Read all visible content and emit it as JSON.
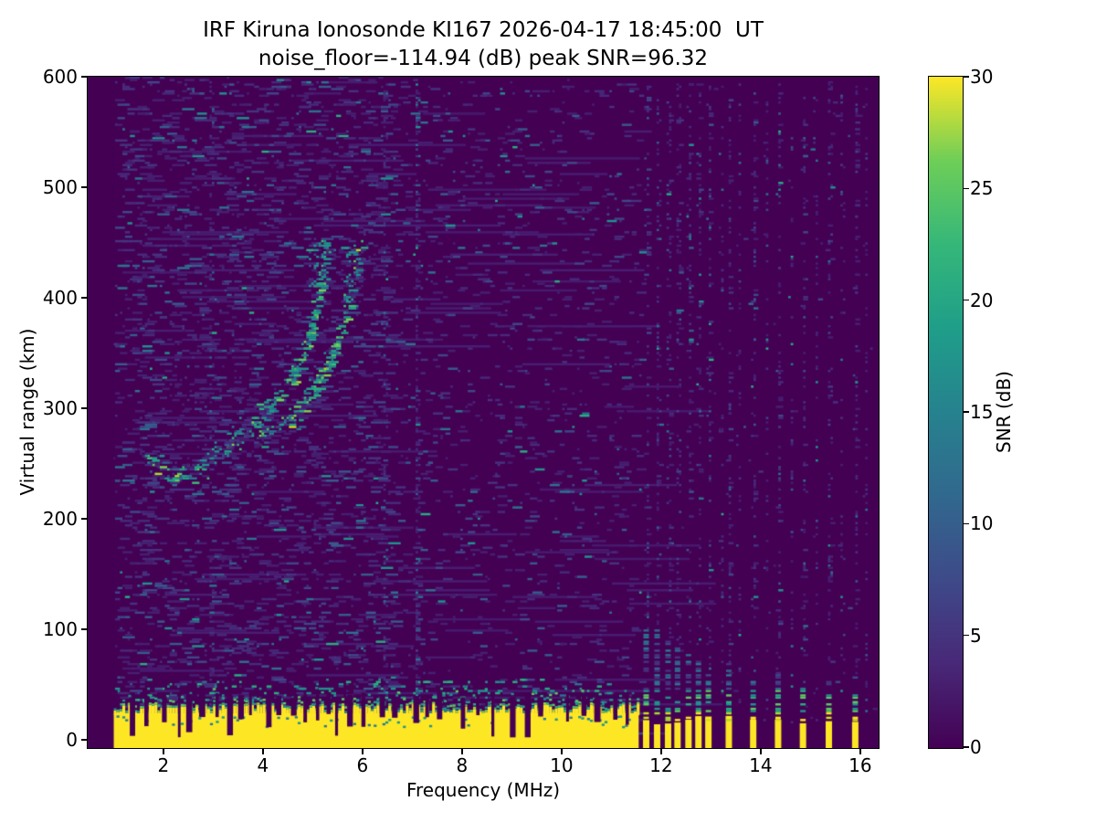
{
  "figure": {
    "title_line1": "IRF Kiruna Ionosonde KI167 2026-04-17 18:45:00  UT",
    "title_line2": "noise_floor=-114.94 (dB) peak SNR=96.32",
    "station": "KI167",
    "timestamp_ut": "2026-04-17 18:45:00",
    "noise_floor_db": -114.94,
    "peak_snr_db": 96.32
  },
  "chart_data": {
    "type": "heatmap",
    "title": "IRF Kiruna Ionosonde KI167 2026-04-17 18:45:00  UT\nnoise_floor=-114.94 (dB) peak SNR=96.32",
    "xlabel": "Frequency (MHz)",
    "ylabel": "Virtual range (km)",
    "colorbar_label": "SNR (dB)",
    "grid": false,
    "xlim": [
      0.48,
      16.37
    ],
    "ylim": [
      -7.4,
      600
    ],
    "clim": [
      0,
      30
    ],
    "x_ticks": [
      2,
      4,
      6,
      8,
      10,
      12,
      14,
      16
    ],
    "y_ticks": [
      0,
      100,
      200,
      300,
      400,
      500,
      600
    ],
    "colorbar_ticks": [
      0,
      5,
      10,
      15,
      20,
      25,
      30
    ],
    "data_freq_start": 1.0,
    "viridis_stops": [
      [
        0.0,
        "#440154"
      ],
      [
        0.125,
        "#482878"
      ],
      [
        0.25,
        "#3e4a89"
      ],
      [
        0.375,
        "#31688e"
      ],
      [
        0.5,
        "#26828e"
      ],
      [
        0.625,
        "#1f9e89"
      ],
      [
        0.75,
        "#35b779"
      ],
      [
        0.875,
        "#6ece58"
      ],
      [
        1.0,
        "#fde725"
      ]
    ],
    "echo_traces": {
      "o_mode": {
        "points": [
          [
            1.62,
            260
          ],
          [
            1.72,
            252
          ],
          [
            1.85,
            246
          ],
          [
            2.0,
            242
          ],
          [
            2.18,
            240
          ],
          [
            2.38,
            242
          ],
          [
            2.58,
            246
          ],
          [
            2.78,
            251
          ],
          [
            2.98,
            257
          ],
          [
            3.18,
            264
          ],
          [
            3.38,
            272
          ],
          [
            3.58,
            280
          ],
          [
            3.78,
            288
          ],
          [
            3.98,
            296
          ],
          [
            4.18,
            306
          ],
          [
            4.38,
            318
          ],
          [
            4.58,
            331
          ],
          [
            4.76,
            347
          ],
          [
            4.9,
            365
          ],
          [
            5.0,
            383
          ],
          [
            5.08,
            401
          ],
          [
            5.15,
            419
          ],
          [
            5.2,
            436
          ],
          [
            5.24,
            448
          ]
        ],
        "bright_range": [
          3.7,
          5.25
        ],
        "spread_top": {
          "freq_range": [
            4.92,
            5.28
          ],
          "km_range": [
            410,
            452
          ]
        }
      },
      "x_mode": {
        "points": [
          [
            3.85,
            270
          ],
          [
            4.05,
            276
          ],
          [
            4.25,
            283
          ],
          [
            4.45,
            291
          ],
          [
            4.65,
            300
          ],
          [
            4.85,
            310
          ],
          [
            5.05,
            322
          ],
          [
            5.22,
            335
          ],
          [
            5.38,
            350
          ],
          [
            5.52,
            366
          ],
          [
            5.64,
            383
          ],
          [
            5.74,
            400
          ],
          [
            5.82,
            417
          ],
          [
            5.88,
            433
          ],
          [
            5.92,
            446
          ]
        ],
        "bright_range": [
          4.5,
          5.85
        ],
        "spread_top": {
          "freq_range": [
            5.58,
            5.96
          ],
          "km_range": [
            398,
            450
          ]
        }
      }
    },
    "ground_band": {
      "freq_start": 1.0,
      "freq_end": 11.55,
      "solid_top_km": 24,
      "ragged_top_km": 36,
      "speckle_top_km": 50,
      "notch_freqs": [
        1.38,
        1.66,
        2.02,
        2.32,
        2.52,
        2.78,
        3.08,
        3.34,
        3.56,
        3.75,
        4.12,
        4.32,
        4.62,
        4.85,
        5.1,
        5.32,
        5.48,
        5.75,
        6.02,
        6.4,
        6.65,
        7.08,
        7.3,
        7.55,
        8.02,
        8.32,
        8.62,
        9.02,
        9.32,
        9.58,
        10.12,
        10.45,
        10.72,
        11.08,
        11.32
      ]
    },
    "stripes": [
      {
        "freq": 11.7,
        "top_km": 100
      },
      {
        "freq": 11.92,
        "top_km": 100
      },
      {
        "freq": 12.14,
        "top_km": 90
      },
      {
        "freq": 12.33,
        "top_km": 85
      },
      {
        "freq": 12.55,
        "top_km": 80
      },
      {
        "freq": 12.75,
        "top_km": 72
      },
      {
        "freq": 12.95,
        "top_km": 62
      },
      {
        "freq": 13.36,
        "top_km": 70
      },
      {
        "freq": 13.85,
        "top_km": 55
      },
      {
        "freq": 14.35,
        "top_km": 60
      },
      {
        "freq": 14.85,
        "top_km": 50
      },
      {
        "freq": 15.37,
        "top_km": 55
      },
      {
        "freq": 15.9,
        "top_km": 60
      }
    ],
    "noise_only_columns": [
      13.2,
      13.55,
      14.1,
      14.6,
      15.1,
      15.62,
      16.1
    ],
    "rfi_columns": [
      {
        "freq": 2.95,
        "strength": 0.3
      },
      {
        "freq": 6.43,
        "strength": 0.3
      },
      {
        "freq": 7.07,
        "strength": 0.7
      }
    ]
  }
}
